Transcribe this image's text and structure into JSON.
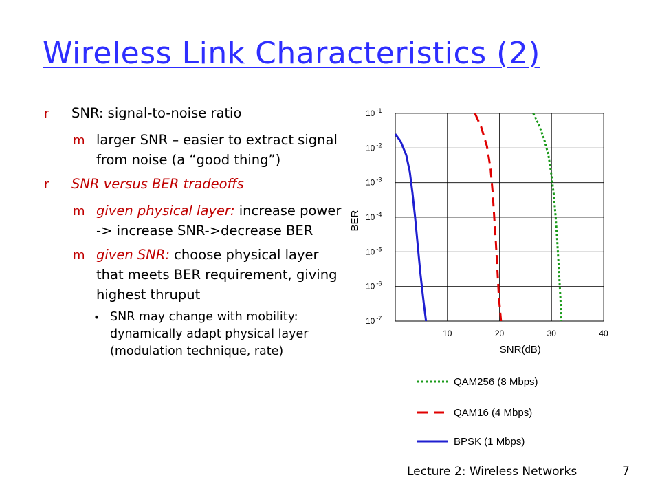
{
  "slide": {
    "title": "Wireless Link Characteristics (2)",
    "footer": "Lecture 2: Wireless Networks",
    "page_number": "7"
  },
  "bullets": {
    "b1_text": "SNR: signal-to-noise ratio",
    "b1_sub1_text": "larger SNR – easier to extract signal from noise (a “good thing”)",
    "b2_text": "SNR versus BER tradeoffs",
    "b2_sub1_prefix": "given physical layer:",
    "b2_sub1_text": " increase power -> increase SNR->decrease BER",
    "b2_sub2_prefix": "given SNR:",
    "b2_sub2_text": " choose physical layer that meets BER requirement, giving highest thruput",
    "b2_sub2_sub1_text": "SNR may change with mobility: dynamically adapt physical layer (modulation technique, rate)",
    "marker_level1": "r",
    "marker_level2": "m",
    "marker_level3": "•"
  },
  "chart_data": {
    "type": "line",
    "title": "",
    "xlabel": "SNR(dB)",
    "ylabel": "BER",
    "xlim": [
      0,
      40
    ],
    "ylim_exponent": [
      -7,
      -1
    ],
    "y_scale": "log",
    "grid": true,
    "legend_position": "bottom",
    "x_ticks": [
      "10",
      "20",
      "30",
      "40"
    ],
    "y_ticks": [
      {
        "base": "10",
        "exp": "-1",
        "value": -1
      },
      {
        "base": "10",
        "exp": "-2",
        "value": -2
      },
      {
        "base": "10",
        "exp": "-3",
        "value": -3
      },
      {
        "base": "10",
        "exp": "-4",
        "value": -4
      },
      {
        "base": "10",
        "exp": "-5",
        "value": -5
      },
      {
        "base": "10",
        "exp": "-6",
        "value": -6
      },
      {
        "base": "10",
        "exp": "-7",
        "value": -7
      }
    ],
    "series": [
      {
        "name": "QAM256 (8 Mbps)",
        "color": "#1a9a1a",
        "style": "dotted",
        "points": [
          [
            26.5,
            -1.0
          ],
          [
            27.5,
            -1.3
          ],
          [
            28.6,
            -1.75
          ],
          [
            29.4,
            -2.2
          ],
          [
            29.9,
            -2.7
          ],
          [
            30.4,
            -3.3
          ],
          [
            30.8,
            -4.0
          ],
          [
            31.1,
            -4.7
          ],
          [
            31.4,
            -5.5
          ],
          [
            31.7,
            -6.3
          ],
          [
            31.9,
            -7.0
          ]
        ]
      },
      {
        "name": "QAM16 (4 Mbps)",
        "color": "#e00000",
        "style": "dashed",
        "points": [
          [
            15.3,
            -1.0
          ],
          [
            16.5,
            -1.4
          ],
          [
            17.6,
            -1.95
          ],
          [
            18.3,
            -2.6
          ],
          [
            18.7,
            -3.3
          ],
          [
            19.0,
            -4.0
          ],
          [
            19.3,
            -4.7
          ],
          [
            19.6,
            -5.5
          ],
          [
            19.9,
            -6.3
          ],
          [
            20.3,
            -7.0
          ]
        ]
      },
      {
        "name": "BPSK (1 Mbps)",
        "color": "#1f1fd0",
        "style": "solid",
        "points": [
          [
            0.0,
            -1.6
          ],
          [
            1.0,
            -1.8
          ],
          [
            2.1,
            -2.2
          ],
          [
            2.8,
            -2.7
          ],
          [
            3.3,
            -3.3
          ],
          [
            3.8,
            -4.0
          ],
          [
            4.3,
            -4.8
          ],
          [
            4.8,
            -5.6
          ],
          [
            5.4,
            -6.4
          ],
          [
            5.9,
            -7.0
          ]
        ]
      }
    ]
  }
}
